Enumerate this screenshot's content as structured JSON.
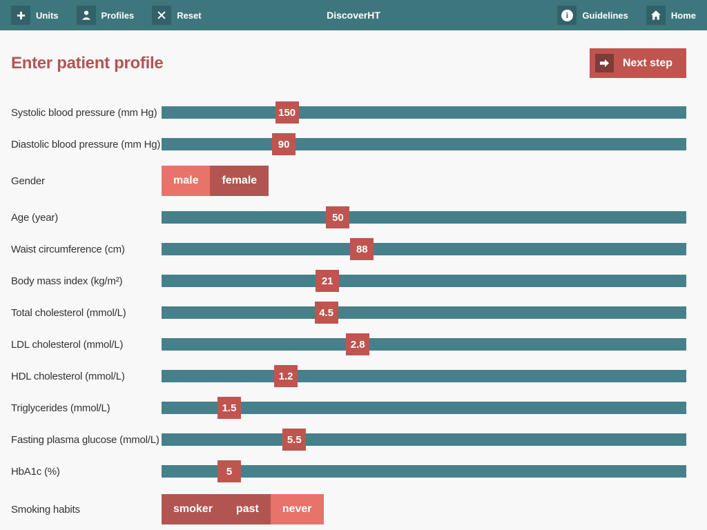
{
  "colors": {
    "topbar": "#3e767e",
    "icon_square": "#33616a",
    "track": "#46808a",
    "handle": "#c0544f",
    "next_icon_square": "#7f3b38",
    "selected": "#e7736b",
    "unselected": "#b25551",
    "heading": "#b35456",
    "label": "#333333",
    "background": "#f8f8f8"
  },
  "topbar": {
    "title": "DiscoverHT",
    "left": [
      {
        "label": "Units",
        "icon": "plus-icon"
      },
      {
        "label": "Profiles",
        "icon": "person-icon"
      },
      {
        "label": "Reset",
        "icon": "x-icon"
      }
    ],
    "right": [
      {
        "label": "Guidelines",
        "icon": "info-icon",
        "info_glyph": "i"
      },
      {
        "label": "Home",
        "icon": "home-icon"
      }
    ]
  },
  "header": {
    "title": "Enter patient profile",
    "next_step": "Next step"
  },
  "rows": [
    {
      "type": "slider",
      "label": "Systolic blood pressure (mm Hg)",
      "value": "150",
      "percent": 23.9
    },
    {
      "type": "slider",
      "label": "Diastolic blood pressure (mm Hg)",
      "value": "90",
      "percent": 23.3
    },
    {
      "type": "toggle",
      "label": "Gender",
      "options": [
        {
          "label": "male",
          "selected": true
        },
        {
          "label": "female",
          "selected": false
        }
      ]
    },
    {
      "type": "slider",
      "label": "Age (year)",
      "value": "50",
      "percent": 33.6
    },
    {
      "type": "slider",
      "label": "Waist circumference (cm)",
      "value": "88",
      "percent": 38.2
    },
    {
      "type": "slider",
      "label": "Body mass index (kg/m²)",
      "value": "21",
      "percent": 31.6
    },
    {
      "type": "slider",
      "label": "Total cholesterol (mmol/L)",
      "value": "4.5",
      "percent": 31.4
    },
    {
      "type": "slider",
      "label": "LDL cholesterol (mmol/L)",
      "value": "2.8",
      "percent": 37.4
    },
    {
      "type": "slider",
      "label": "HDL cholesterol (mmol/L)",
      "value": "1.2",
      "percent": 23.7
    },
    {
      "type": "slider",
      "label": "Triglycerides (mmol/L)",
      "value": "1.5",
      "percent": 12.9
    },
    {
      "type": "slider",
      "label": "Fasting plasma glucose (mmol/L)",
      "value": "5.5",
      "percent": 25.3
    },
    {
      "type": "slider",
      "label": "HbA1c (%)",
      "value": "5",
      "percent": 12.9
    },
    {
      "type": "toggle",
      "label": "Smoking habits",
      "options": [
        {
          "label": "smoker",
          "selected": false
        },
        {
          "label": "past",
          "selected": false
        },
        {
          "label": "never",
          "selected": true
        }
      ]
    }
  ]
}
